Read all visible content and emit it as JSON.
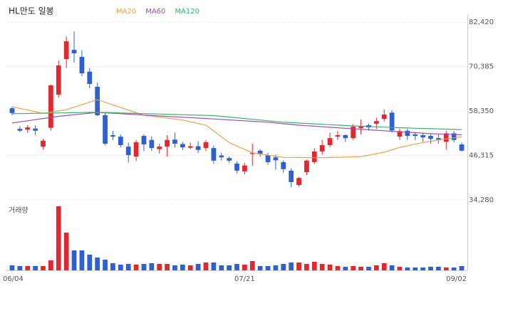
{
  "chart_data": {
    "type": "candlestick",
    "title": "HL만도 일봉",
    "volume_label": "거래량",
    "categories": [
      "06/04",
      null,
      null,
      null,
      null,
      null,
      null,
      null,
      null,
      null,
      null,
      null,
      null,
      null,
      null,
      null,
      null,
      null,
      null,
      null,
      null,
      null,
      null,
      null,
      null,
      null,
      null,
      null,
      null,
      null,
      "07/21",
      null,
      null,
      null,
      null,
      null,
      null,
      null,
      null,
      null,
      null,
      null,
      null,
      null,
      null,
      null,
      null,
      null,
      null,
      null,
      null,
      null,
      null,
      null,
      null,
      null,
      null,
      null,
      "09/02"
    ],
    "open": [
      59100,
      53500,
      53300,
      53600,
      48700,
      53800,
      62780,
      72410,
      74900,
      73000,
      69000,
      64900,
      57200,
      51800,
      51400,
      48700,
      46000,
      51600,
      50500,
      48000,
      48700,
      50600,
      49400,
      48400,
      48800,
      48300,
      48300,
      46300,
      45600,
      44100,
      42000,
      46700,
      47600,
      46400,
      45800,
      44500,
      42200,
      38300,
      41800,
      44500,
      47400,
      49100,
      51400,
      51800,
      51000,
      53700,
      54500,
      54900,
      56200,
      57900,
      51400,
      53000,
      52000,
      51800,
      51600,
      51000,
      50000,
      52300,
      49300
    ],
    "high": [
      59500,
      54200,
      54500,
      54500,
      50800,
      65500,
      72000,
      78500,
      79900,
      74800,
      70000,
      66000,
      58000,
      53000,
      52000,
      49800,
      50500,
      52000,
      51500,
      49500,
      51800,
      52500,
      50000,
      49800,
      50200,
      50500,
      49000,
      47000,
      46000,
      44700,
      44300,
      49500,
      48000,
      47000,
      46500,
      45000,
      42800,
      40500,
      45200,
      48200,
      50500,
      52500,
      53000,
      52000,
      54800,
      56000,
      55000,
      56500,
      58800,
      58500,
      53500,
      53500,
      52500,
      52500,
      52000,
      52000,
      53000,
      53000,
      49800
    ],
    "low": [
      57200,
      52600,
      52500,
      51800,
      47900,
      53000,
      62000,
      70000,
      71500,
      67800,
      64500,
      57000,
      49000,
      50500,
      48500,
      44400,
      44800,
      47500,
      47500,
      46800,
      46000,
      48500,
      47800,
      48000,
      47000,
      47500,
      44000,
      45000,
      44300,
      41500,
      41200,
      43500,
      46000,
      43800,
      42500,
      41600,
      37700,
      37900,
      41000,
      44000,
      46500,
      48500,
      50500,
      50000,
      50500,
      52000,
      53000,
      53500,
      55500,
      52500,
      50500,
      50500,
      50500,
      50000,
      49500,
      49500,
      47900,
      49800,
      47400
    ],
    "close": [
      57800,
      53000,
      53900,
      53000,
      50300,
      65280,
      70670,
      77220,
      73950,
      68550,
      65670,
      57200,
      49500,
      51400,
      49100,
      46400,
      49900,
      49300,
      48300,
      48700,
      50500,
      49500,
      48500,
      48800,
      47800,
      49900,
      44900,
      45800,
      44900,
      42200,
      43600,
      47000,
      46800,
      44500,
      45000,
      42600,
      39100,
      40200,
      44900,
      47400,
      49100,
      51000,
      51800,
      51000,
      54100,
      54100,
      53900,
      55600,
      57400,
      53100,
      52900,
      51600,
      51600,
      51200,
      50800,
      50600,
      52300,
      50500,
      47600
    ],
    "volume": [
      70,
      60,
      60,
      60,
      60,
      140,
      900,
      530,
      280,
      280,
      220,
      180,
      150,
      100,
      80,
      90,
      80,
      90,
      100,
      90,
      90,
      70,
      80,
      70,
      90,
      110,
      110,
      70,
      70,
      90,
      80,
      130,
      60,
      60,
      70,
      90,
      110,
      110,
      90,
      120,
      90,
      80,
      60,
      50,
      60,
      50,
      50,
      70,
      100,
      70,
      50,
      40,
      40,
      40,
      50,
      50,
      40,
      40,
      60
    ],
    "up_color": "#e0282e",
    "down_color": "#2f5fd0",
    "series": [
      {
        "name": "MA20",
        "color": "#e8a24c",
        "values": [
          59500,
          59050,
          58600,
          58150,
          57700,
          58030,
          58370,
          58700,
          59380,
          60050,
          60730,
          61400,
          60700,
          60000,
          59300,
          58600,
          57900,
          57200,
          56940,
          56680,
          56420,
          56160,
          55900,
          55430,
          54970,
          54500,
          52930,
          51370,
          49800,
          48870,
          47930,
          47000,
          46700,
          46400,
          46100,
          45800,
          45780,
          45760,
          45740,
          45720,
          45700,
          45760,
          45820,
          45880,
          45940,
          46000,
          46400,
          46800,
          47200,
          47850,
          48500,
          48930,
          49370,
          49800,
          50130,
          50470,
          50800,
          51100,
          51400
        ]
      },
      {
        "name": "MA60",
        "color": "#9b4fb0",
        "values": [
          55100,
          55400,
          55700,
          56000,
          56300,
          56600,
          56900,
          57110,
          57330,
          57540,
          57760,
          57970,
          57850,
          57730,
          57610,
          57490,
          57360,
          57240,
          57120,
          57000,
          56890,
          56770,
          56660,
          56540,
          56430,
          56310,
          56200,
          56070,
          55940,
          55810,
          55690,
          55560,
          55430,
          55300,
          55100,
          54900,
          54700,
          54500,
          54360,
          54220,
          54080,
          53940,
          53800,
          53670,
          53530,
          53400,
          53270,
          53130,
          53000,
          52870,
          52730,
          52600,
          52470,
          52330,
          52200,
          52130,
          52050,
          51980,
          51900
        ]
      },
      {
        "name": "MA120",
        "color": "#3fae6a",
        "values": [
          57600,
          57640,
          57670,
          57710,
          57750,
          57780,
          57820,
          57850,
          57890,
          57930,
          57960,
          58000,
          57940,
          57880,
          57820,
          57760,
          57700,
          57640,
          57580,
          57520,
          57460,
          57400,
          57340,
          57280,
          57220,
          57160,
          57100,
          56900,
          56700,
          56500,
          56300,
          56100,
          55900,
          55700,
          55500,
          55300,
          55190,
          55080,
          54970,
          54860,
          54740,
          54630,
          54520,
          54410,
          54300,
          54220,
          54130,
          54050,
          53970,
          53880,
          53800,
          53740,
          53680,
          53610,
          53550,
          53490,
          53430,
          53370,
          53300
        ]
      }
    ],
    "ylim": [
      34280,
      82420
    ],
    "yticks": [
      {
        "value": 82420,
        "label": "82,420"
      },
      {
        "value": 70385,
        "label": "70,385"
      },
      {
        "value": 58350,
        "label": "58,350"
      },
      {
        "value": 46315,
        "label": "46,315"
      },
      {
        "value": 34280,
        "label": "34,280"
      }
    ],
    "volume_ylim": [
      0,
      900
    ],
    "grid": true
  }
}
